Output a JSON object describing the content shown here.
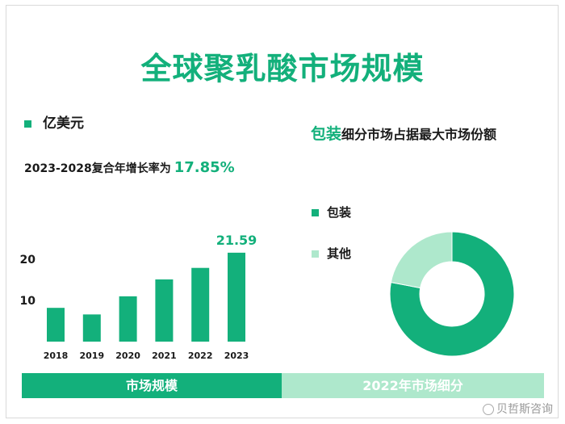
{
  "title": "全球聚乳酸市场规模",
  "unit_label": "亿美元",
  "cagr": {
    "label": "2023-2028复合年增长率为",
    "value": "17.85%"
  },
  "donut": {
    "title_highlight": "包装",
    "title_rest": "细分市场占据最大市场份额"
  },
  "bands": {
    "left": "市场规模",
    "right": "2022年市场细分"
  },
  "brand": "贝哲斯咨询",
  "colors": {
    "accent": "#13b07b",
    "light": "#aee8cc"
  },
  "chart_data": [
    {
      "type": "bar",
      "title": "",
      "xlabel": "",
      "ylabel": "亿美元",
      "categories": [
        "2018",
        "2019",
        "2020",
        "2021",
        "2022",
        "2023"
      ],
      "values": [
        8.2,
        6.6,
        11.0,
        15.1,
        17.9,
        21.59
      ],
      "data_labels": [
        "",
        "",
        "",
        "",
        "",
        "21.59"
      ],
      "yticks": [
        10,
        20
      ],
      "ylim": [
        0,
        22
      ]
    },
    {
      "type": "pie",
      "title": "",
      "slices": [
        {
          "name": "包装",
          "value": 78,
          "color": "#13b07b"
        },
        {
          "name": "其他",
          "value": 22,
          "color": "#aee8cc"
        }
      ]
    }
  ]
}
